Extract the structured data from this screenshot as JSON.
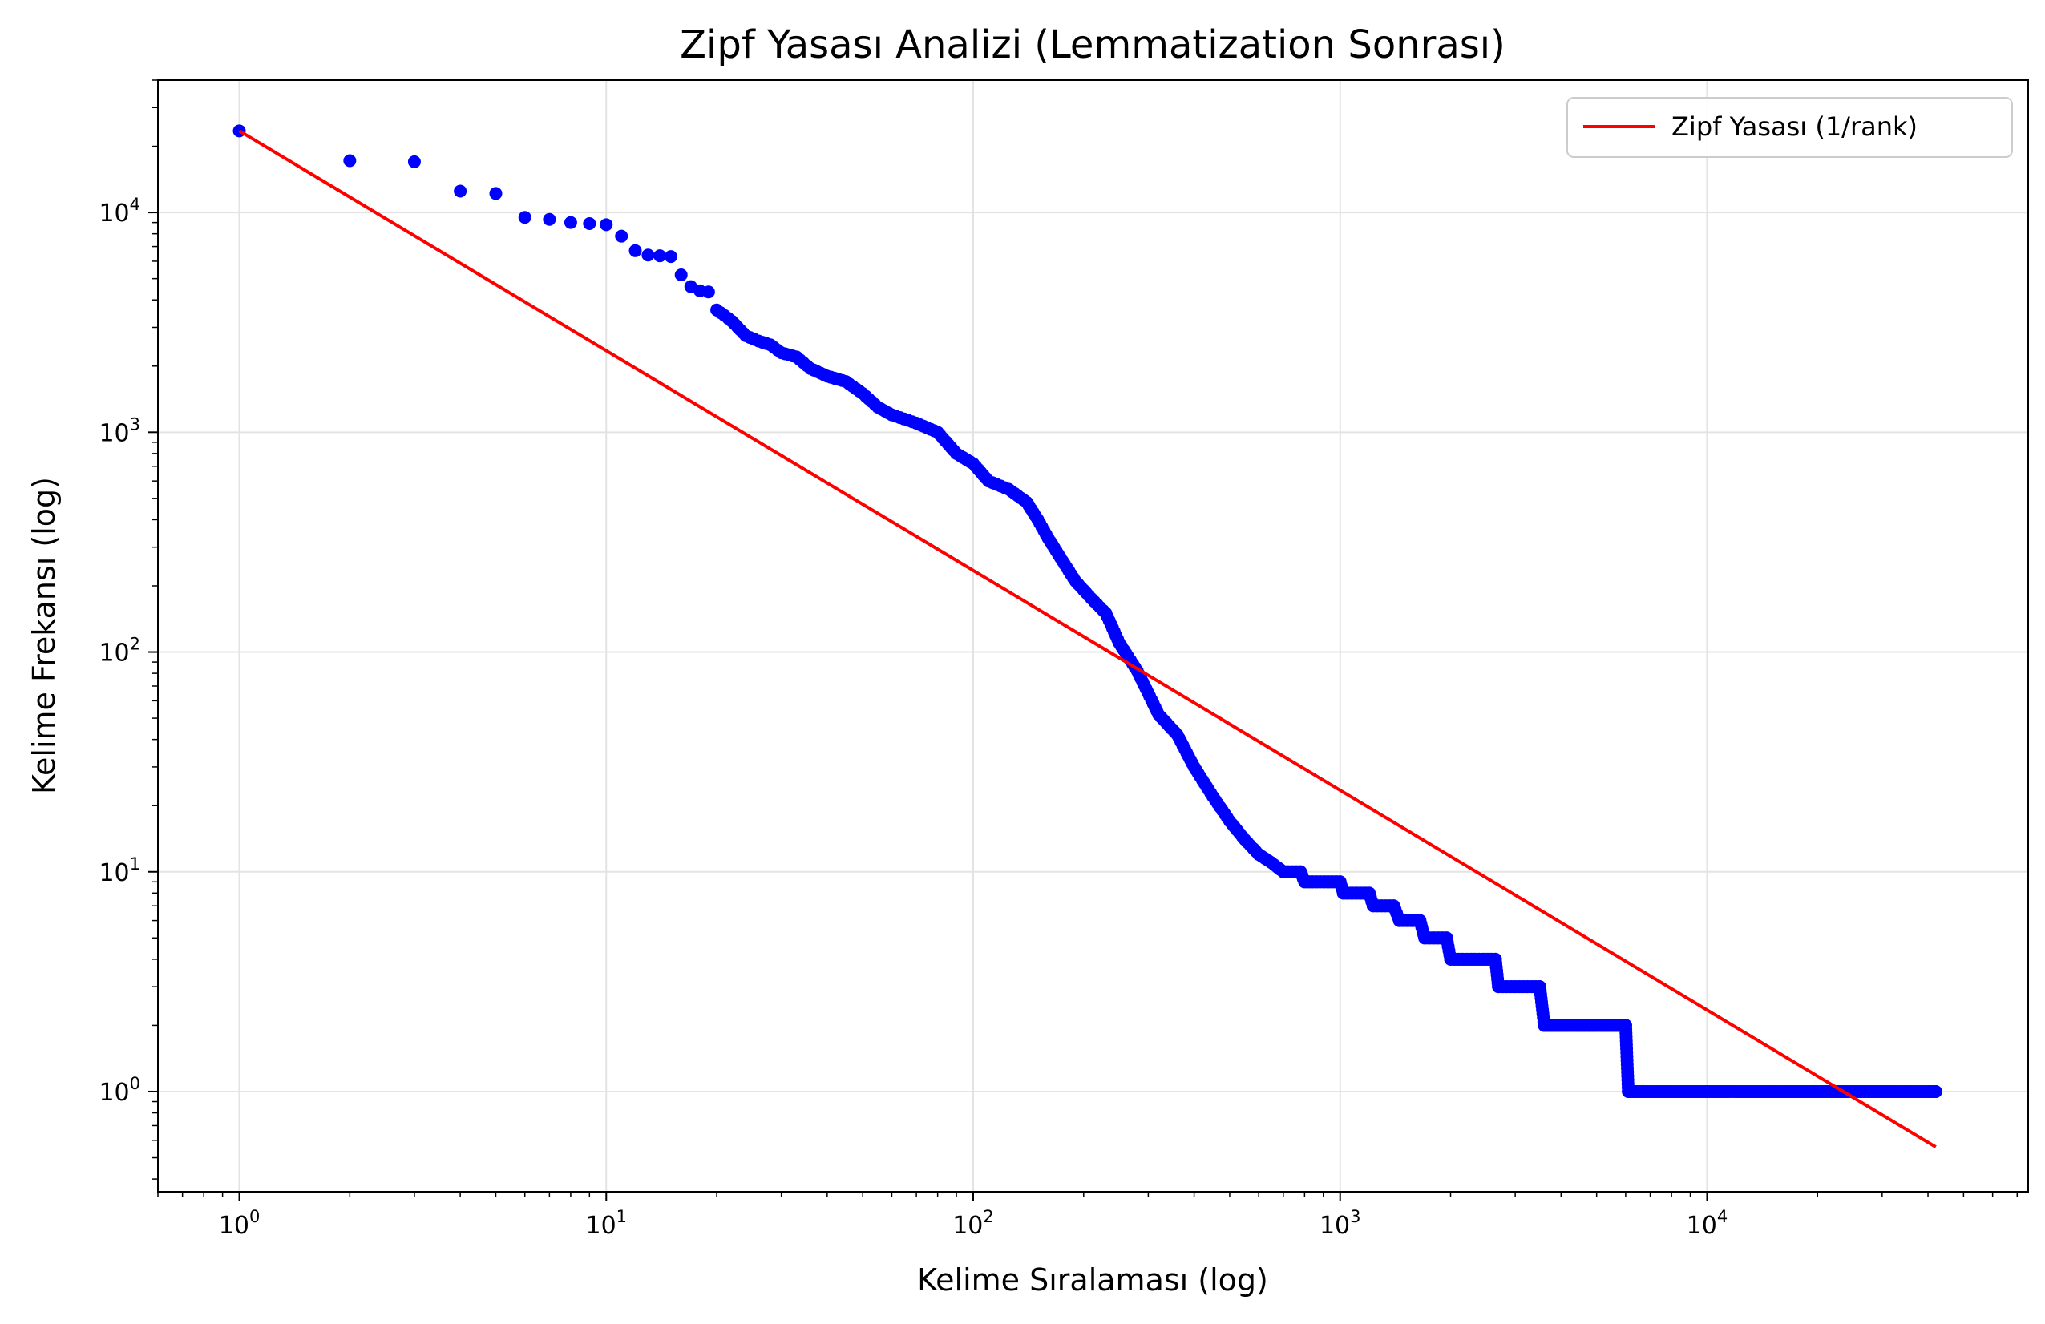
{
  "chart_data": {
    "type": "scatter",
    "title": "Zipf Yasası Analizi (Lemmatization Sonrası)",
    "xlabel": "Kelime Sıralaması (log)",
    "ylabel": "Kelime Frekansı (log)",
    "xscale": "log",
    "yscale": "log",
    "xlim": [
      0.6,
      75000
    ],
    "ylim": [
      0.35,
      40000
    ],
    "x_ticks": [
      {
        "base": "10",
        "exp": "0",
        "value": 1
      },
      {
        "base": "10",
        "exp": "1",
        "value": 10
      },
      {
        "base": "10",
        "exp": "2",
        "value": 100
      },
      {
        "base": "10",
        "exp": "3",
        "value": 1000
      },
      {
        "base": "10",
        "exp": "4",
        "value": 10000
      }
    ],
    "y_ticks": [
      {
        "base": "10",
        "exp": "0",
        "value": 1
      },
      {
        "base": "10",
        "exp": "1",
        "value": 10
      },
      {
        "base": "10",
        "exp": "2",
        "value": 100
      },
      {
        "base": "10",
        "exp": "3",
        "value": 1000
      },
      {
        "base": "10",
        "exp": "4",
        "value": 10000
      }
    ],
    "grid": true,
    "legend_position": "top-right",
    "series": [
      {
        "kind": "scatter",
        "color": "#0000ff",
        "points": [
          [
            1,
            23500
          ],
          [
            2,
            17200
          ],
          [
            3,
            17000
          ],
          [
            4,
            12500
          ],
          [
            5,
            12200
          ],
          [
            6,
            9500
          ],
          [
            7,
            9300
          ],
          [
            8,
            9000
          ],
          [
            9,
            8900
          ],
          [
            10,
            8800
          ],
          [
            11,
            7800
          ],
          [
            12,
            6700
          ],
          [
            13,
            6400
          ],
          [
            14,
            6350
          ],
          [
            15,
            6300
          ],
          [
            16,
            5200
          ],
          [
            17,
            4600
          ],
          [
            18,
            4400
          ],
          [
            19,
            4350
          ],
          [
            20,
            3600
          ],
          [
            21,
            3400
          ],
          [
            22,
            3200
          ],
          [
            24,
            2750
          ],
          [
            26,
            2600
          ],
          [
            28,
            2500
          ],
          [
            30,
            2300
          ],
          [
            33,
            2200
          ],
          [
            36,
            1950
          ],
          [
            40,
            1800
          ],
          [
            45,
            1700
          ],
          [
            50,
            1500
          ],
          [
            55,
            1300
          ],
          [
            60,
            1200
          ],
          [
            70,
            1100
          ],
          [
            80,
            1000
          ],
          [
            90,
            800
          ],
          [
            100,
            720
          ],
          [
            110,
            600
          ],
          [
            125,
            550
          ],
          [
            140,
            480
          ],
          [
            150,
            400
          ],
          [
            160,
            330
          ],
          [
            175,
            260
          ],
          [
            190,
            210
          ],
          [
            210,
            175
          ],
          [
            230,
            150
          ],
          [
            250,
            110
          ],
          [
            280,
            82
          ],
          [
            320,
            52
          ],
          [
            360,
            42
          ],
          [
            400,
            30
          ],
          [
            450,
            22
          ],
          [
            500,
            17
          ],
          [
            550,
            14
          ],
          [
            600,
            12
          ],
          [
            650,
            11
          ],
          [
            700,
            10
          ],
          [
            780,
            10
          ],
          [
            800,
            9
          ],
          [
            1000,
            9
          ],
          [
            1020,
            8
          ],
          [
            1200,
            8
          ],
          [
            1230,
            7
          ],
          [
            1400,
            7
          ],
          [
            1450,
            6
          ],
          [
            1650,
            6
          ],
          [
            1700,
            5
          ],
          [
            1950,
            5
          ],
          [
            2000,
            4
          ],
          [
            2650,
            4
          ],
          [
            2700,
            3
          ],
          [
            3500,
            3
          ],
          [
            3600,
            2
          ],
          [
            6000,
            2
          ],
          [
            6100,
            1
          ],
          [
            42000,
            1
          ]
        ],
        "steps": [
          {
            "from": 700,
            "to": 780,
            "value": 10
          },
          {
            "from": 800,
            "to": 1000,
            "value": 9
          },
          {
            "from": 1020,
            "to": 1200,
            "value": 8
          },
          {
            "from": 1230,
            "to": 1400,
            "value": 7
          },
          {
            "from": 1450,
            "to": 1650,
            "value": 6
          },
          {
            "from": 1700,
            "to": 1950,
            "value": 5
          },
          {
            "from": 2000,
            "to": 2650,
            "value": 4
          },
          {
            "from": 2700,
            "to": 3500,
            "value": 3
          },
          {
            "from": 3600,
            "to": 6000,
            "value": 2
          },
          {
            "from": 6100,
            "to": 42000,
            "value": 1
          }
        ]
      },
      {
        "kind": "line",
        "name": "Zipf Yasası (1/rank)",
        "color": "#ff0000",
        "x": [
          1,
          42000
        ],
        "y": [
          23500,
          0.5595
        ]
      }
    ]
  }
}
